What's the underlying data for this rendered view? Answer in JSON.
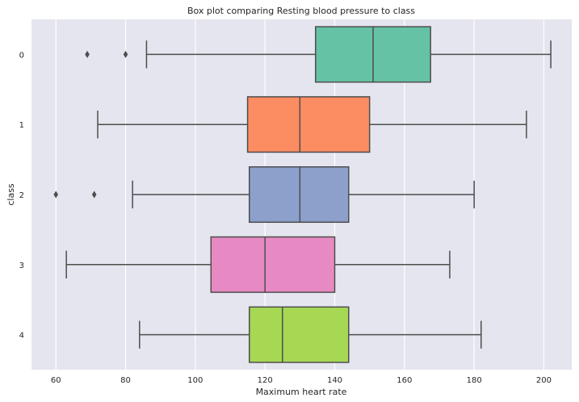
{
  "chart_data": {
    "type": "boxplot",
    "orientation": "horizontal",
    "title": "Box plot comparing Resting blood pressure to class",
    "xlabel": "Maximum heart rate",
    "ylabel": "class",
    "xlim": [
      53,
      208
    ],
    "xticks": [
      60,
      80,
      100,
      120,
      140,
      160,
      180,
      200
    ],
    "grid": true,
    "categories": [
      "0",
      "1",
      "2",
      "3",
      "4"
    ],
    "boxes": [
      {
        "category": "0",
        "whisker_low": 86,
        "q1": 134.5,
        "median": 151,
        "q3": 167.5,
        "whisker_high": 202,
        "outliers": [
          69,
          80
        ],
        "color": "#66c2a5"
      },
      {
        "category": "1",
        "whisker_low": 72,
        "q1": 115,
        "median": 130,
        "q3": 150,
        "whisker_high": 195,
        "outliers": [],
        "color": "#fc8d62"
      },
      {
        "category": "2",
        "whisker_low": 82,
        "q1": 115.5,
        "median": 130,
        "q3": 144,
        "whisker_high": 180,
        "outliers": [
          60,
          71
        ],
        "color": "#8da0cb"
      },
      {
        "category": "3",
        "whisker_low": 63,
        "q1": 104.5,
        "median": 120,
        "q3": 140,
        "whisker_high": 173,
        "outliers": [],
        "color": "#e78ac3"
      },
      {
        "category": "4",
        "whisker_low": 84,
        "q1": 115.5,
        "median": 125,
        "q3": 144,
        "whisker_high": 182,
        "outliers": [],
        "color": "#a6d854"
      }
    ]
  }
}
